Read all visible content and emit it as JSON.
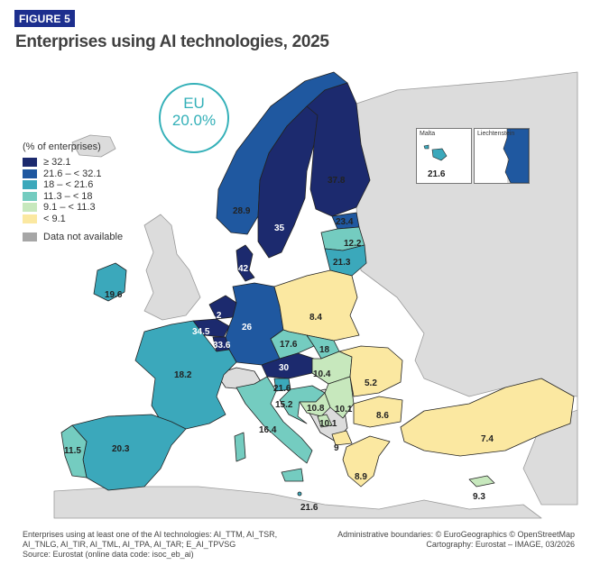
{
  "figure_label": "FIGURE 5",
  "title": "Enterprises using AI technologies, 2025",
  "eu_badge": {
    "label": "EU",
    "value": "20.0%"
  },
  "legend": {
    "title": "(% of enterprises)",
    "classes": [
      {
        "label": "≥ 32.1",
        "color": "#1c2a6e"
      },
      {
        "label": "21.6 – < 32.1",
        "color": "#1f58a0"
      },
      {
        "label": "18 – < 21.6",
        "color": "#3ba8bb"
      },
      {
        "label": "11.3 – < 18",
        "color": "#74ccc0"
      },
      {
        "label": "9.1 – < 11.3",
        "color": "#c7e8bd"
      },
      {
        "label": "< 9.1",
        "color": "#fbe8a1"
      }
    ],
    "not_available": {
      "label": "Data not available",
      "color": "#a6a6a6"
    }
  },
  "map_colors": {
    "sea": "#ffffff",
    "non_eu": "#dcdcdc",
    "border": "#222222"
  },
  "values": {
    "finland": "37.8",
    "sweden": "35",
    "norway": "28.9",
    "denmark": "42",
    "estonia": "23.4",
    "latvia": "12.2",
    "lithuania": "21.3",
    "ireland": "19.6",
    "netherlands": "33.2",
    "belgium": "34.5",
    "luxembourg": "33.6",
    "germany": "26",
    "poland": "8.4",
    "czechia": "17.6",
    "slovakia": "18",
    "austria": "30",
    "hungary": "10.4",
    "slovenia": "21.6",
    "croatia": "15.2",
    "france": "18.2",
    "spain": "20.3",
    "portugal": "11.5",
    "italy": "16.4",
    "malta_main": "21.6",
    "romania": "5.2",
    "bulgaria": "8.6",
    "serbia": "10.1",
    "bosnia": "10.8",
    "montenegro": "10.1",
    "north_macedonia": "9",
    "greece": "8.9",
    "turkiye": "7.4",
    "cyprus": "9.3"
  },
  "insets": {
    "malta": {
      "label": "Malta",
      "value": "21.6"
    },
    "liechtenstein": {
      "label": "Liechtenstein"
    }
  },
  "footer": {
    "note_line1": "Enterprises using at least one of the AI technologies: AI_TTM, AI_TSR,",
    "note_line2": "AI_TNLG, AI_TIR, AI_TML, AI_TPA, AI_TAR; E_AI_TPVSG",
    "source": "Source: Eurostat (online data code: isoc_eb_ai)",
    "boundaries": "Administrative boundaries: © EuroGeographics © OpenStreetMap",
    "cartography": "Cartography: Eurostat – IMAGE, 03/2026"
  }
}
